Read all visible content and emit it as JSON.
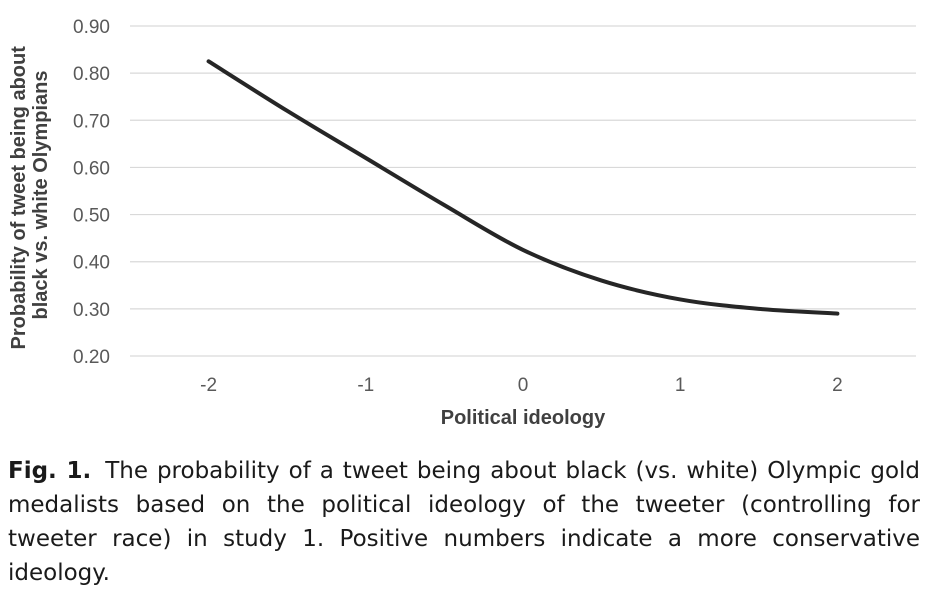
{
  "chart_data": {
    "type": "line",
    "xlabel": "Political ideology",
    "ylabel_lines": [
      "Probability of tweet being about",
      "black vs. white Olympians"
    ],
    "x_ticks": [
      "-2",
      "-1",
      "0",
      "1",
      "2"
    ],
    "y_ticks": [
      "0.20",
      "0.30",
      "0.40",
      "0.50",
      "0.60",
      "0.70",
      "0.80",
      "0.90"
    ],
    "xlim": [
      -2.5,
      2.5
    ],
    "ylim": [
      0.2,
      0.9
    ],
    "grid": true,
    "series": [
      {
        "color": "#262626",
        "x": [
          -2,
          -1.5,
          -1,
          -0.5,
          0,
          0.5,
          1,
          1.5,
          2
        ],
        "y": [
          0.825,
          0.72,
          0.62,
          0.52,
          0.425,
          0.36,
          0.32,
          0.3,
          0.29
        ]
      }
    ]
  },
  "caption": {
    "label": "Fig. 1.",
    "text": "The probability of a tweet being about black (vs. white) Olympic gold medalists based on the political ideology of the tweeter (controlling for tweeter race) in study 1. Positive numbers indicate a more conservative ideology."
  }
}
